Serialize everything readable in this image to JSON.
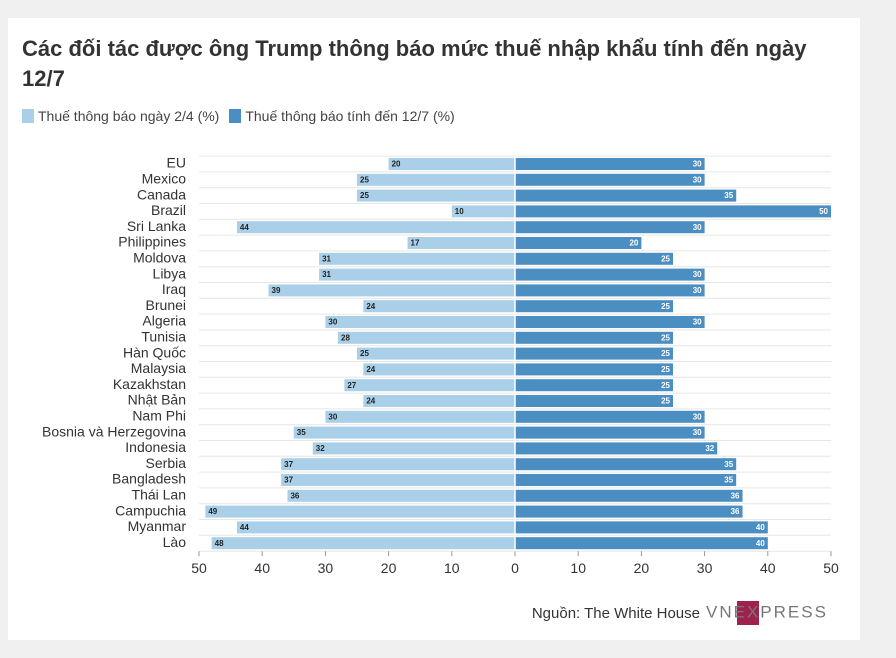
{
  "chart_data": {
    "type": "butterfly-bar",
    "title": "Các đối tác được ông Trump thông báo mức thuế nhập khẩu tính đến ngày 12/7",
    "categories": [
      "EU",
      "Mexico",
      "Canada",
      "Brazil",
      "Sri Lanka",
      "Philippines",
      "Moldova",
      "Libya",
      "Iraq",
      "Brunei",
      "Algeria",
      "Tunisia",
      "Hàn Quốc",
      "Malaysia",
      "Kazakhstan",
      "Nhật Bản",
      "Nam Phi",
      "Bosnia và Herzegovina",
      "Indonesia",
      "Serbia",
      "Bangladesh",
      "Thái Lan",
      "Campuchia",
      "Myanmar",
      "Lào"
    ],
    "series": [
      {
        "name": "Thuế thông báo ngày 2/4 (%)",
        "color": "#a9d0e8",
        "values": [
          20,
          25,
          25,
          10,
          44,
          17,
          31,
          31,
          39,
          24,
          30,
          28,
          25,
          24,
          27,
          24,
          30,
          35,
          32,
          37,
          37,
          36,
          49,
          44,
          48
        ]
      },
      {
        "name": "Thuế thông báo tính đến 12/7 (%)",
        "color": "#4a8ec2",
        "values": [
          30,
          30,
          35,
          50,
          30,
          20,
          25,
          30,
          30,
          25,
          30,
          25,
          25,
          25,
          25,
          25,
          30,
          30,
          32,
          35,
          35,
          36,
          36,
          40,
          40
        ]
      }
    ],
    "xlim": [
      -50,
      50
    ],
    "xticks": [
      {
        "value": -50,
        "label": "50"
      },
      {
        "value": -40,
        "label": "40"
      },
      {
        "value": -30,
        "label": "30"
      },
      {
        "value": -20,
        "label": "20"
      },
      {
        "value": -10,
        "label": "10"
      },
      0,
      10,
      20,
      30,
      40,
      50
    ],
    "source": "Nguồn: The White House",
    "logo": "VNEXPRESS"
  }
}
